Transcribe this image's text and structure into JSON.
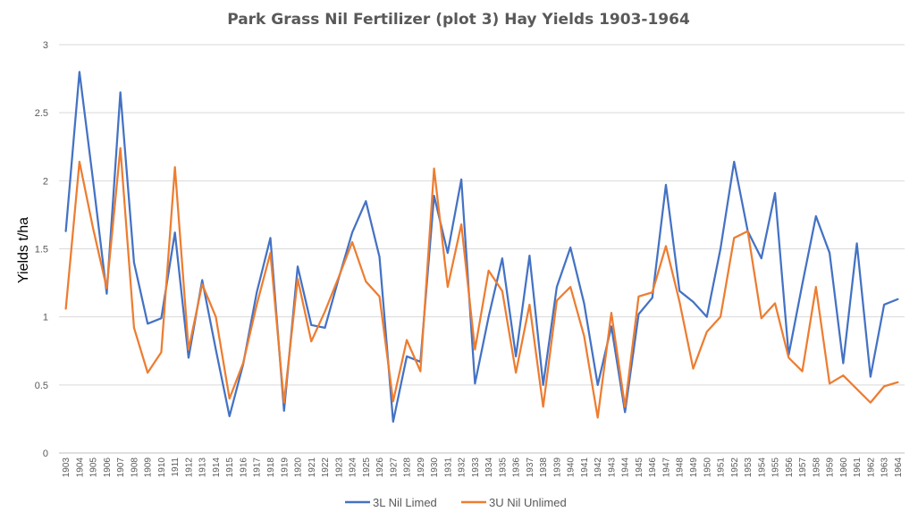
{
  "chart_data": {
    "type": "line",
    "title": "Park Grass Nil Fertilizer (plot 3) Hay Yields 1903-1964",
    "xlabel": "",
    "ylabel": "Yields t/ha",
    "ylim": [
      0,
      3
    ],
    "yticks": [
      "0",
      "0.5",
      "1",
      "1.5",
      "2",
      "2.5",
      "3"
    ],
    "grid": true,
    "legend_position": "bottom",
    "x": [
      "1903",
      "1904",
      "1905",
      "1906",
      "1907",
      "1908",
      "1909",
      "1910",
      "1911",
      "1912",
      "1913",
      "1914",
      "1915",
      "1916",
      "1917",
      "1918",
      "1919",
      "1920",
      "1921",
      "1922",
      "1923",
      "1924",
      "1925",
      "1926",
      "1927",
      "1928",
      "1929",
      "1930",
      "1931",
      "1932",
      "1933",
      "1934",
      "1935",
      "1936",
      "1937",
      "1938",
      "1939",
      "1940",
      "1941",
      "1942",
      "1943",
      "1944",
      "1945",
      "1946",
      "1947",
      "1948",
      "1949",
      "1950",
      "1951",
      "1952",
      "1953",
      "1954",
      "1955",
      "1956",
      "1957",
      "1958",
      "1959",
      "1960",
      "1961",
      "1962",
      "1963",
      "1964"
    ],
    "series": [
      {
        "name": "3L Nil Limed",
        "color": "#4472C4",
        "values": [
          1.63,
          2.8,
          2.0,
          1.17,
          2.65,
          1.4,
          0.95,
          0.99,
          1.62,
          0.7,
          1.27,
          0.76,
          0.27,
          0.65,
          1.18,
          1.58,
          0.31,
          1.37,
          0.94,
          0.92,
          1.28,
          1.62,
          1.85,
          1.44,
          0.23,
          0.71,
          0.67,
          1.89,
          1.47,
          2.01,
          0.51,
          1.0,
          1.43,
          0.71,
          1.45,
          0.5,
          1.22,
          1.51,
          1.1,
          0.5,
          0.93,
          0.3,
          1.02,
          1.14,
          1.97,
          1.19,
          1.11,
          1.0,
          1.5,
          2.14,
          1.63,
          1.43,
          1.91,
          0.72,
          1.24,
          1.74,
          1.47,
          0.66,
          1.54,
          0.56,
          1.09,
          1.13
        ]
      },
      {
        "name": "3U Nil Unlimed",
        "color": "#ED7D31",
        "values": [
          1.06,
          2.14,
          1.65,
          1.21,
          2.24,
          0.92,
          0.59,
          0.74,
          2.1,
          0.76,
          1.24,
          1.0,
          0.4,
          0.66,
          1.09,
          1.47,
          0.37,
          1.28,
          0.82,
          1.04,
          1.29,
          1.55,
          1.26,
          1.15,
          0.38,
          0.83,
          0.6,
          2.09,
          1.22,
          1.68,
          0.76,
          1.34,
          1.19,
          0.59,
          1.09,
          0.34,
          1.12,
          1.22,
          0.86,
          0.26,
          1.03,
          0.34,
          1.15,
          1.18,
          1.52,
          1.11,
          0.62,
          0.89,
          1.0,
          1.58,
          1.63,
          0.99,
          1.1,
          0.7,
          0.6,
          1.22,
          0.51,
          0.57,
          0.47,
          0.37,
          0.49,
          0.52
        ]
      }
    ]
  }
}
